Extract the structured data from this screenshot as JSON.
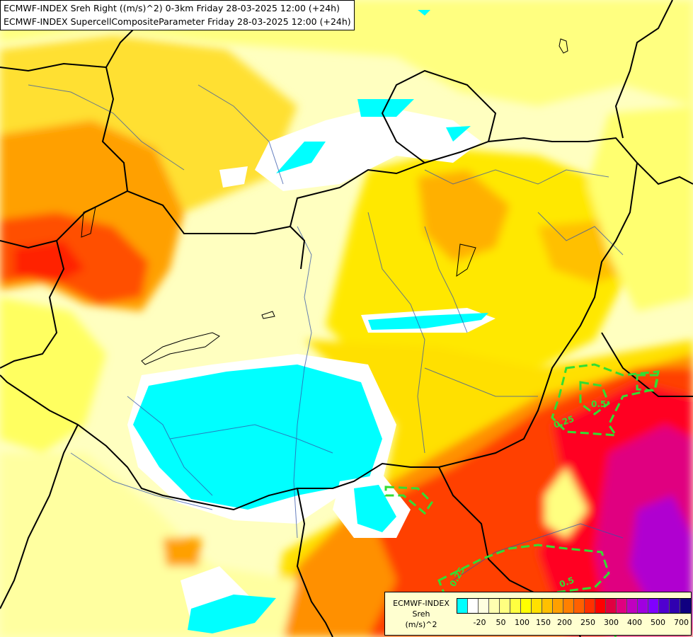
{
  "header": {
    "line1": "ECMWF-INDEX Sreh Right ((m/s)^2) 0-3km Friday 28-03-2025 12:00 (+24h)",
    "line2": "ECMWF-INDEX SupercellCompositeParameter Friday 28-03-2025 12:00 (+24h)"
  },
  "legend": {
    "line1": "ECMWF-INDEX",
    "line2": "Sreh",
    "line3": "(m/s)^2",
    "colors": [
      "#00ffff",
      "#ffffff",
      "#ffffe0",
      "#ffffb0",
      "#ffff80",
      "#ffff40",
      "#ffff00",
      "#ffe000",
      "#ffc000",
      "#ffa000",
      "#ff8000",
      "#ff6000",
      "#ff3000",
      "#ff0000",
      "#e00040",
      "#e00080",
      "#c000c0",
      "#a000e0",
      "#8000ff",
      "#5000d0",
      "#3000b0",
      "#100080"
    ],
    "ticks": [
      "-20",
      "50",
      "100",
      "150",
      "200",
      "250",
      "300",
      "400",
      "500",
      "700"
    ]
  },
  "contours": {
    "labels": [
      "0.5",
      "0.25",
      "0.5",
      "0.25"
    ],
    "color": "#33dd33"
  }
}
